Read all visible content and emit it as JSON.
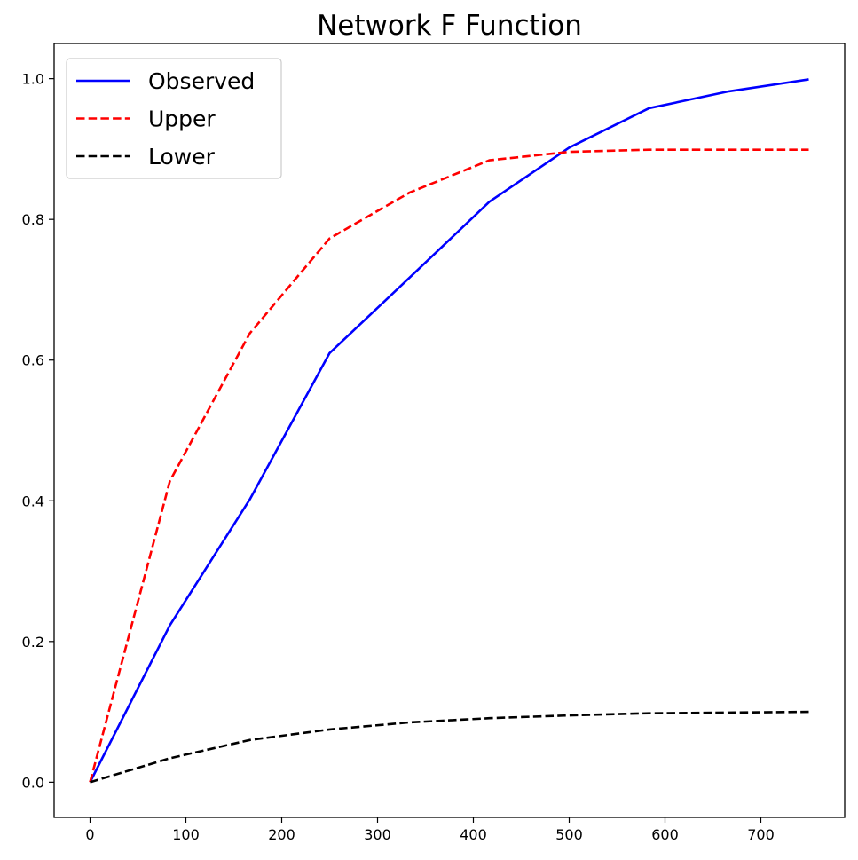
{
  "chart_data": {
    "type": "line",
    "title": "Network F Function",
    "xlabel": "",
    "ylabel": "",
    "xlim": [
      -37.5,
      787.5
    ],
    "ylim": [
      -0.05,
      1.05
    ],
    "x_ticks": [
      0,
      100,
      200,
      300,
      400,
      500,
      600,
      700
    ],
    "y_ticks": [
      0.0,
      0.2,
      0.4,
      0.6,
      0.8,
      1.0
    ],
    "x_tick_labels": [
      "0",
      "100",
      "200",
      "300",
      "400",
      "500",
      "600",
      "700"
    ],
    "y_tick_labels": [
      "0.0",
      "0.2",
      "0.4",
      "0.6",
      "0.8",
      "1.0"
    ],
    "grid": false,
    "legend_position": "upper-left",
    "x": [
      0,
      83.3,
      166.7,
      250,
      333.3,
      416.7,
      500,
      583.3,
      666.7,
      750
    ],
    "series": [
      {
        "name": "Observed",
        "color": "#0000ff",
        "style": "solid",
        "values": [
          0.0,
          0.223,
          0.402,
          0.61,
          0.717,
          0.825,
          0.902,
          0.958,
          0.982,
          0.999
        ]
      },
      {
        "name": "Upper",
        "color": "#ff0000",
        "style": "dashed",
        "values": [
          0.0,
          0.428,
          0.638,
          0.773,
          0.838,
          0.884,
          0.896,
          0.899,
          0.899,
          0.899
        ]
      },
      {
        "name": "Lower",
        "color": "#000000",
        "style": "dashed",
        "values": [
          0.0,
          0.034,
          0.06,
          0.075,
          0.085,
          0.091,
          0.095,
          0.098,
          0.099,
          0.1
        ]
      }
    ]
  }
}
